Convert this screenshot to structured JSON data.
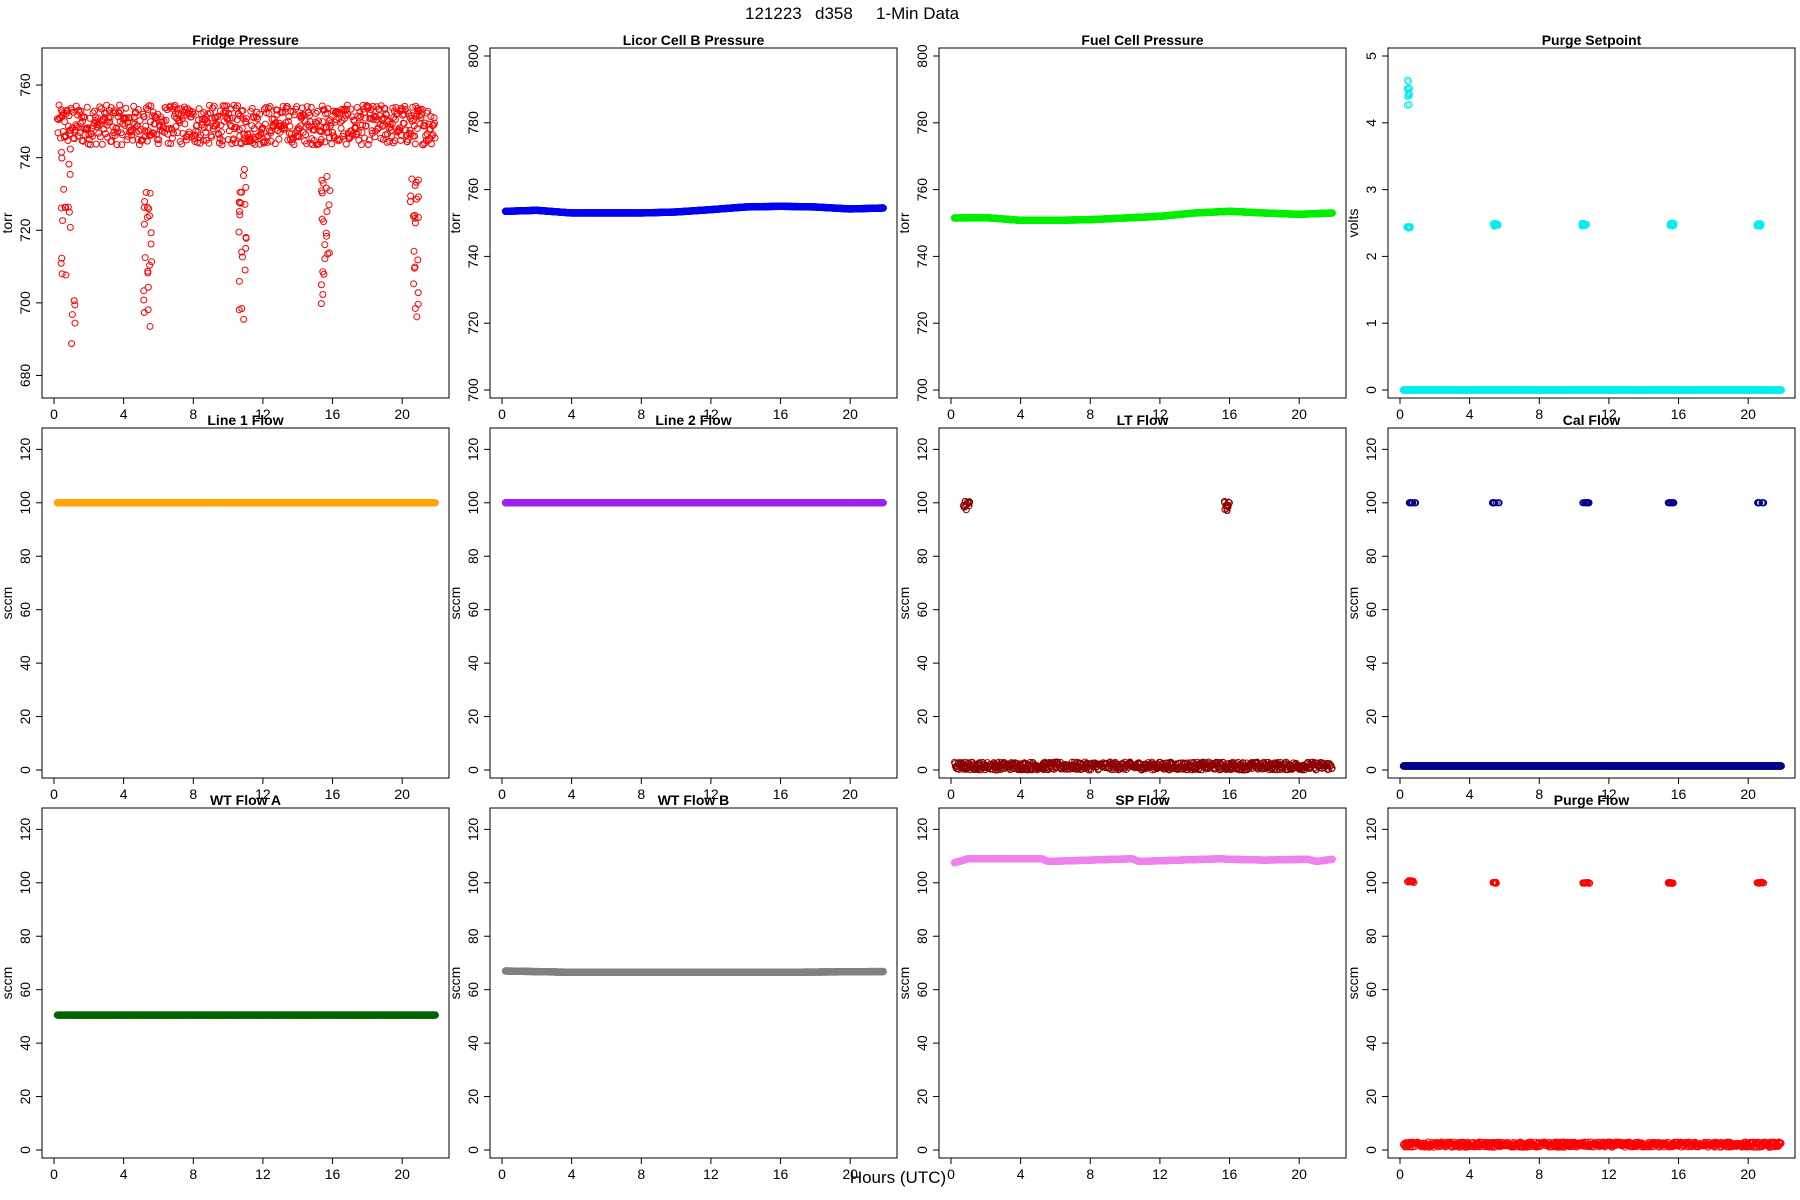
{
  "figure": {
    "heading": {
      "date": "121223",
      "station": "d358",
      "kind": "1-Min Data"
    },
    "xlabel": "Hours (UTC)"
  },
  "chart_data": [
    {
      "type": "scatter",
      "title": "Fridge Pressure",
      "ylabel": "torr",
      "xlim": [
        0,
        22
      ],
      "ylim": [
        676,
        768
      ],
      "yticks": [
        680,
        700,
        720,
        740,
        760
      ],
      "xticks": [
        0,
        4,
        8,
        12,
        16,
        20
      ],
      "color": "#ff0000",
      "base": {
        "x": [
          0.2,
          21.9
        ],
        "y": [
          749,
          749
        ],
        "noise": 5.5
      },
      "bursts": [
        {
          "x": [
            0.4,
            1.3
          ],
          "y": [
            676,
            745
          ]
        },
        {
          "x": 5.4,
          "y": [
            693,
            733
          ]
        },
        {
          "x": 10.8,
          "y": [
            691,
            738
          ]
        },
        {
          "x": 15.6,
          "y": [
            693,
            737
          ]
        },
        {
          "x": 20.7,
          "y": [
            688,
            735
          ]
        }
      ]
    },
    {
      "type": "scatter",
      "title": "Licor Cell B Pressure",
      "ylabel": "torr",
      "xlim": [
        0,
        22
      ],
      "ylim": [
        700,
        800
      ],
      "yticks": [
        700,
        720,
        740,
        760,
        780,
        800
      ],
      "xticks": [
        0,
        4,
        8,
        12,
        16,
        20
      ],
      "color": "#0000ee",
      "series": {
        "x": [
          0.2,
          2,
          4,
          6,
          8,
          10,
          12,
          14,
          16,
          18,
          20,
          21.9
        ],
        "y": [
          753.5,
          753.8,
          753,
          753,
          753,
          753.3,
          754,
          754.8,
          755,
          754.8,
          754.2,
          754.5
        ]
      }
    },
    {
      "type": "scatter",
      "title": "Fuel Cell Pressure",
      "ylabel": "torr",
      "xlim": [
        0,
        22
      ],
      "ylim": [
        700,
        800
      ],
      "yticks": [
        700,
        720,
        740,
        760,
        780,
        800
      ],
      "xticks": [
        0,
        4,
        8,
        12,
        16,
        20
      ],
      "color": "#00ee00",
      "series": {
        "x": [
          0.2,
          2,
          4,
          6,
          8,
          10,
          12,
          14,
          16,
          18,
          20,
          21.9
        ],
        "y": [
          751.5,
          751.6,
          750.8,
          750.8,
          751,
          751.5,
          752,
          753,
          753.5,
          753,
          752.6,
          753
        ]
      }
    },
    {
      "type": "scatter",
      "title": "Purge Setpoint",
      "ylabel": "volts",
      "xlim": [
        0,
        22
      ],
      "ylim": [
        0,
        5
      ],
      "yticks": [
        0,
        1,
        2,
        3,
        4,
        5
      ],
      "xticks": [
        0,
        4,
        8,
        12,
        16,
        20
      ],
      "color": "#00eeee",
      "series": {
        "x": [
          0.2,
          21.9
        ],
        "y": [
          0,
          0
        ]
      },
      "clusters": [
        {
          "x": [
            0.4,
            0.6
          ],
          "y": [
            4.25,
            4.65
          ]
        },
        {
          "x": [
            0.4,
            0.6
          ],
          "y": [
            2.42,
            2.45
          ]
        },
        {
          "x": 5.5,
          "y": [
            2.45,
            2.5
          ]
        },
        {
          "x": 10.6,
          "y": [
            2.45,
            2.5
          ]
        },
        {
          "x": 15.6,
          "y": [
            2.45,
            2.5
          ]
        },
        {
          "x": 20.6,
          "y": [
            2.45,
            2.5
          ]
        }
      ]
    },
    {
      "type": "scatter",
      "title": "Line 1 Flow",
      "ylabel": "sccm",
      "xlim": [
        0,
        22
      ],
      "ylim": [
        0,
        125
      ],
      "yticks": [
        0,
        20,
        40,
        60,
        80,
        100,
        120
      ],
      "xticks": [
        0,
        4,
        8,
        12,
        16,
        20
      ],
      "color": "#ffa500",
      "series": {
        "x": [
          0.2,
          21.9
        ],
        "y": [
          100,
          100
        ]
      }
    },
    {
      "type": "scatter",
      "title": "Line 2 Flow",
      "ylabel": "sccm",
      "xlim": [
        0,
        22
      ],
      "ylim": [
        0,
        125
      ],
      "yticks": [
        0,
        20,
        40,
        60,
        80,
        100,
        120
      ],
      "xticks": [
        0,
        4,
        8,
        12,
        16,
        20
      ],
      "color": "#a020f0",
      "series": {
        "x": [
          0.2,
          21.9
        ],
        "y": [
          100,
          100
        ]
      }
    },
    {
      "type": "scatter",
      "title": "LT Flow",
      "ylabel": "sccm",
      "xlim": [
        0,
        22
      ],
      "ylim": [
        0,
        125
      ],
      "yticks": [
        0,
        20,
        40,
        60,
        80,
        100,
        120
      ],
      "xticks": [
        0,
        4,
        8,
        12,
        16,
        20
      ],
      "color": "#8b0000",
      "base": {
        "x": [
          0.2,
          21.9
        ],
        "y": [
          1.5,
          1.5
        ],
        "noise": 1.5
      },
      "clusters": [
        {
          "x": [
            0.7,
            1.1
          ],
          "y": [
            97,
            101
          ]
        },
        {
          "x": [
            15.7,
            16.0
          ],
          "y": [
            97,
            101
          ]
        }
      ]
    },
    {
      "type": "scatter",
      "title": "Cal Flow",
      "ylabel": "sccm",
      "xlim": [
        0,
        22
      ],
      "ylim": [
        0,
        125
      ],
      "yticks": [
        0,
        20,
        40,
        60,
        80,
        100,
        120
      ],
      "xticks": [
        0,
        4,
        8,
        12,
        16,
        20
      ],
      "color": "#00008b",
      "series": {
        "x": [
          0.2,
          21.9
        ],
        "y": [
          1.5,
          1.5
        ]
      },
      "clusters": [
        {
          "x": [
            0.5,
            0.9
          ],
          "y": [
            100,
            100
          ]
        },
        {
          "x": [
            5.3,
            5.7
          ],
          "y": [
            100,
            100
          ]
        },
        {
          "x": [
            10.5,
            10.9
          ],
          "y": [
            100,
            100
          ]
        },
        {
          "x": [
            15.4,
            15.8
          ],
          "y": [
            100,
            100
          ]
        },
        {
          "x": [
            20.5,
            20.9
          ],
          "y": [
            100,
            100
          ]
        }
      ]
    },
    {
      "type": "scatter",
      "title": "WT Flow A",
      "ylabel": "sccm",
      "xlim": [
        0,
        22
      ],
      "ylim": [
        0,
        125
      ],
      "yticks": [
        0,
        20,
        40,
        60,
        80,
        100,
        120
      ],
      "xticks": [
        0,
        4,
        8,
        12,
        16,
        20
      ],
      "color": "#006400",
      "series": {
        "x": [
          0.2,
          21.9
        ],
        "y": [
          50.5,
          50.5
        ]
      }
    },
    {
      "type": "scatter",
      "title": "WT Flow B",
      "ylabel": "sccm",
      "xlim": [
        0,
        22
      ],
      "ylim": [
        0,
        125
      ],
      "yticks": [
        0,
        20,
        40,
        60,
        80,
        100,
        120
      ],
      "xticks": [
        0,
        4,
        8,
        12,
        16,
        20
      ],
      "color": "#808080",
      "series": {
        "x": [
          0.2,
          4,
          8,
          12,
          16,
          21.9
        ],
        "y": [
          67,
          66.5,
          66.5,
          66.5,
          66.5,
          66.8
        ]
      }
    },
    {
      "type": "scatter",
      "title": "SP Flow",
      "ylabel": "sccm",
      "xlim": [
        0,
        22
      ],
      "ylim": [
        0,
        125
      ],
      "yticks": [
        0,
        20,
        40,
        60,
        80,
        100,
        120
      ],
      "xticks": [
        0,
        4,
        8,
        12,
        16,
        20
      ],
      "color": "#ee82ee",
      "series": {
        "x": [
          0.2,
          1,
          5.2,
          5.6,
          10.4,
          10.8,
          15.5,
          16,
          18,
          20.5,
          21,
          21.9
        ],
        "y": [
          107.5,
          109,
          109,
          108,
          109,
          108,
          109,
          108.8,
          108.5,
          108.8,
          108,
          108.8
        ]
      }
    },
    {
      "type": "scatter",
      "title": "Purge Flow",
      "ylabel": "sccm",
      "xlim": [
        0,
        22
      ],
      "ylim": [
        0,
        125
      ],
      "yticks": [
        0,
        20,
        40,
        60,
        80,
        100,
        120
      ],
      "xticks": [
        0,
        4,
        8,
        12,
        16,
        20
      ],
      "color": "#ff0000",
      "base": {
        "x": [
          0.2,
          21.9
        ],
        "y": [
          2,
          2
        ],
        "noise": 1
      },
      "clusters": [
        {
          "x": [
            0.4,
            0.8
          ],
          "y": [
            100,
            100.8
          ]
        },
        {
          "x": [
            5.3,
            5.6
          ],
          "y": [
            99.8,
            100.2
          ]
        },
        {
          "x": [
            10.5,
            10.9
          ],
          "y": [
            99.8,
            100.2
          ]
        },
        {
          "x": [
            15.4,
            15.7
          ],
          "y": [
            99.8,
            100.2
          ]
        },
        {
          "x": [
            20.5,
            20.9
          ],
          "y": [
            99.8,
            100.2
          ]
        }
      ]
    }
  ]
}
